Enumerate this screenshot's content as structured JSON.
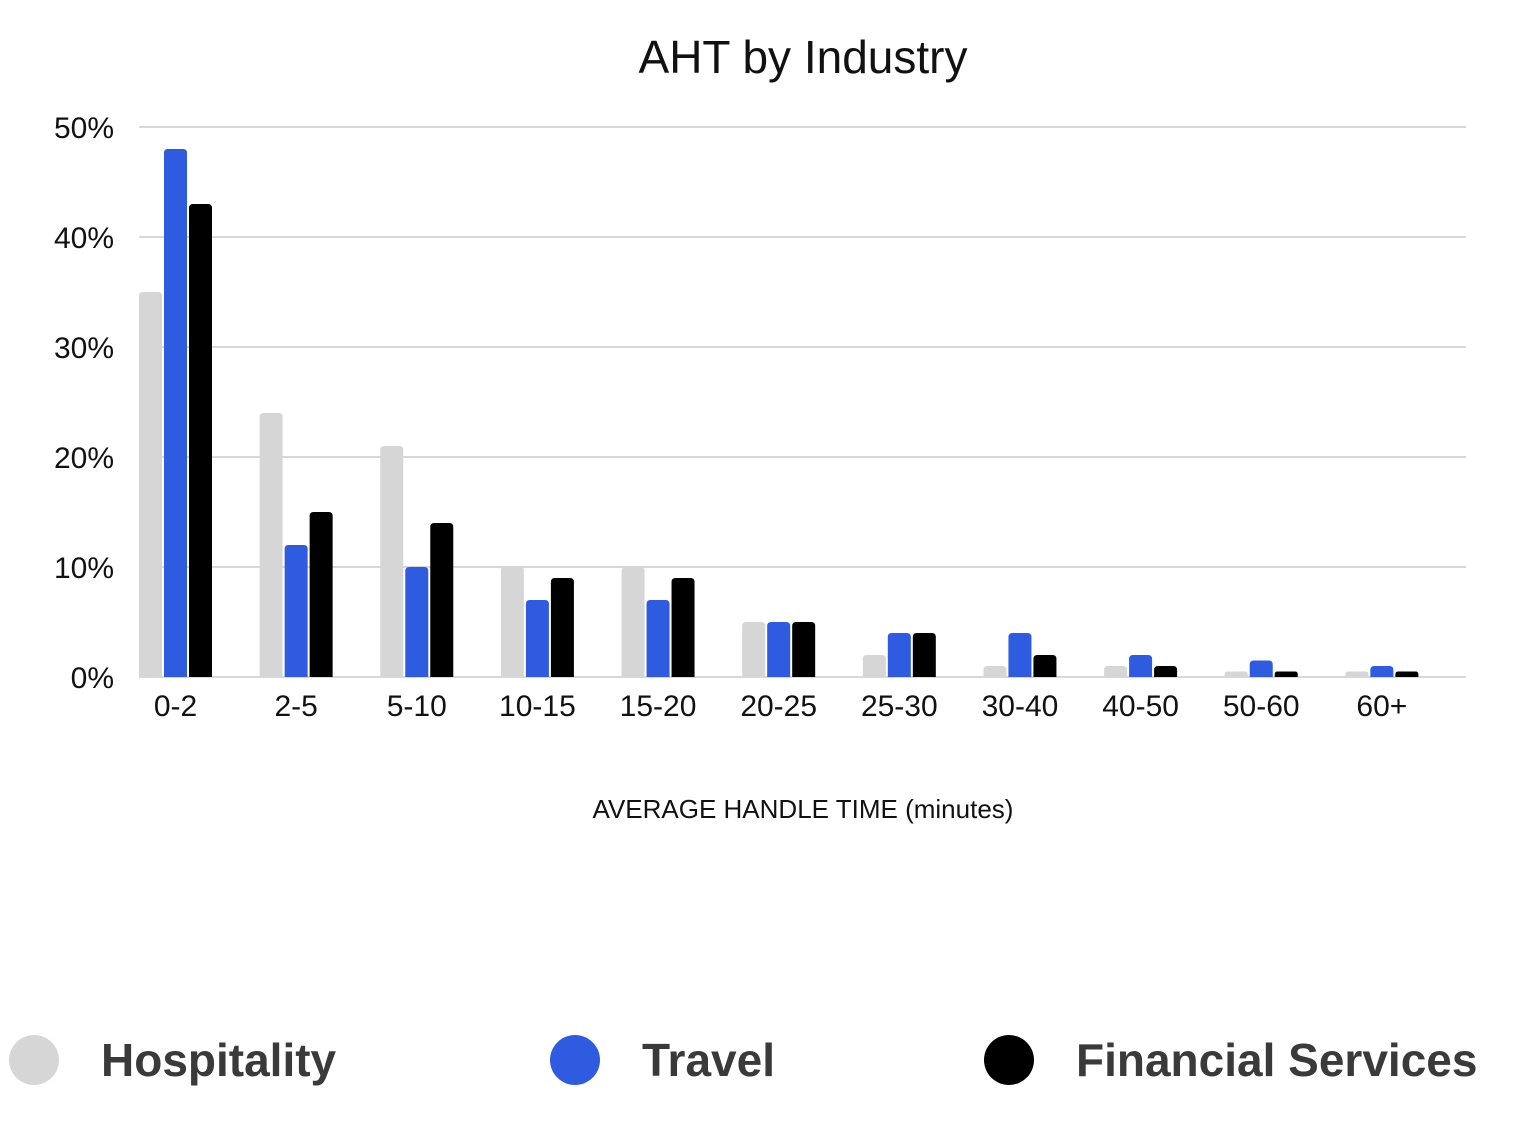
{
  "chart_data": {
    "type": "bar",
    "title": "AHT by Industry",
    "xlabel": "AVERAGE HANDLE TIME (minutes)",
    "ylabel": "",
    "categories": [
      "0-2",
      "2-5",
      "5-10",
      "10-15",
      "15-20",
      "20-25",
      "25-30",
      "30-40",
      "40-50",
      "50-60",
      "60+"
    ],
    "series": [
      {
        "name": "Hospitality",
        "color": "#d6d6d6",
        "values": [
          35,
          24,
          21,
          10,
          10,
          5,
          2,
          1,
          1,
          0.5,
          0.5
        ]
      },
      {
        "name": "Travel",
        "color": "#2f5be0",
        "values": [
          48,
          12,
          10,
          7,
          7,
          5,
          4,
          4,
          2,
          1.5,
          1
        ]
      },
      {
        "name": "Financial Services",
        "color": "#000000",
        "values": [
          43,
          15,
          14,
          9,
          9,
          5,
          4,
          2,
          1,
          0.5,
          0.5
        ]
      }
    ],
    "ylim": [
      0,
      50
    ],
    "yticks": [
      0,
      10,
      20,
      30,
      40,
      50
    ],
    "ytick_labels": [
      "0%",
      "10%",
      "20%",
      "30%",
      "40%",
      "50%"
    ],
    "grid": true,
    "legend_position": "bottom"
  }
}
